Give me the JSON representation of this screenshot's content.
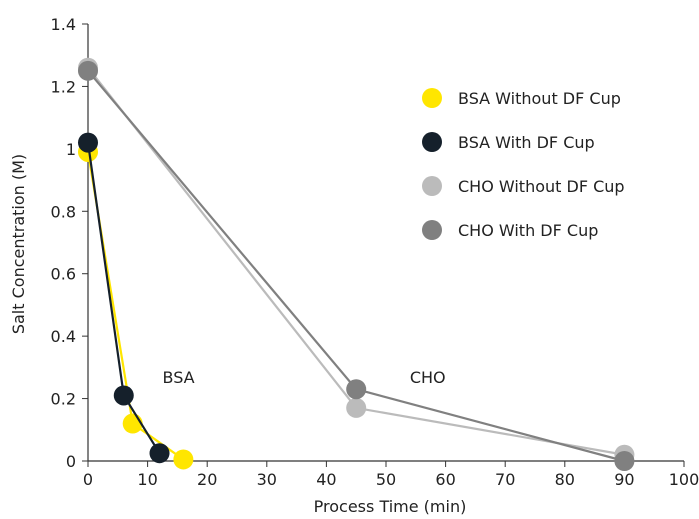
{
  "chart_data": {
    "type": "line",
    "title": "",
    "xlabel": "Process Time (min)",
    "ylabel": "Salt Concentration (M)",
    "xlim": [
      0,
      100
    ],
    "ylim": [
      0,
      1.4
    ],
    "x_ticks": [
      0,
      10,
      20,
      30,
      40,
      50,
      60,
      70,
      80,
      90,
      100
    ],
    "y_ticks": [
      0,
      0.2,
      0.4,
      0.6,
      0.8,
      1,
      1.2,
      1.4
    ],
    "x_tick_labels": [
      "0",
      "10",
      "20",
      "30",
      "40",
      "50",
      "60",
      "70",
      "80",
      "90",
      "100"
    ],
    "y_tick_labels": [
      "0",
      "0.2",
      "0.4",
      "0.6",
      "0.8",
      "1",
      "1.2",
      "1.4"
    ],
    "grid": false,
    "legend_position": "top-right",
    "series": [
      {
        "name": "CHO Without DF Cup",
        "color": "#BBBBBB",
        "x": [
          0,
          45,
          90
        ],
        "y": [
          1.26,
          0.17,
          0.02
        ]
      },
      {
        "name": "CHO With DF Cup",
        "color": "#808080",
        "x": [
          0,
          45,
          90
        ],
        "y": [
          1.25,
          0.23,
          0.0
        ]
      },
      {
        "name": "BSA Without DF Cup",
        "color": "#FFE600",
        "x": [
          0,
          7.5,
          16
        ],
        "y": [
          0.99,
          0.12,
          0.005
        ]
      },
      {
        "name": "BSA With DF Cup",
        "color": "#15202B",
        "x": [
          0,
          6,
          12
        ],
        "y": [
          1.02,
          0.21,
          0.025
        ]
      }
    ],
    "legend_order": [
      2,
      3,
      0,
      1
    ],
    "annotations": [
      {
        "text": "BSA",
        "x": 12.5,
        "y": 0.25
      },
      {
        "text": "CHO",
        "x": 54,
        "y": 0.25
      }
    ]
  }
}
